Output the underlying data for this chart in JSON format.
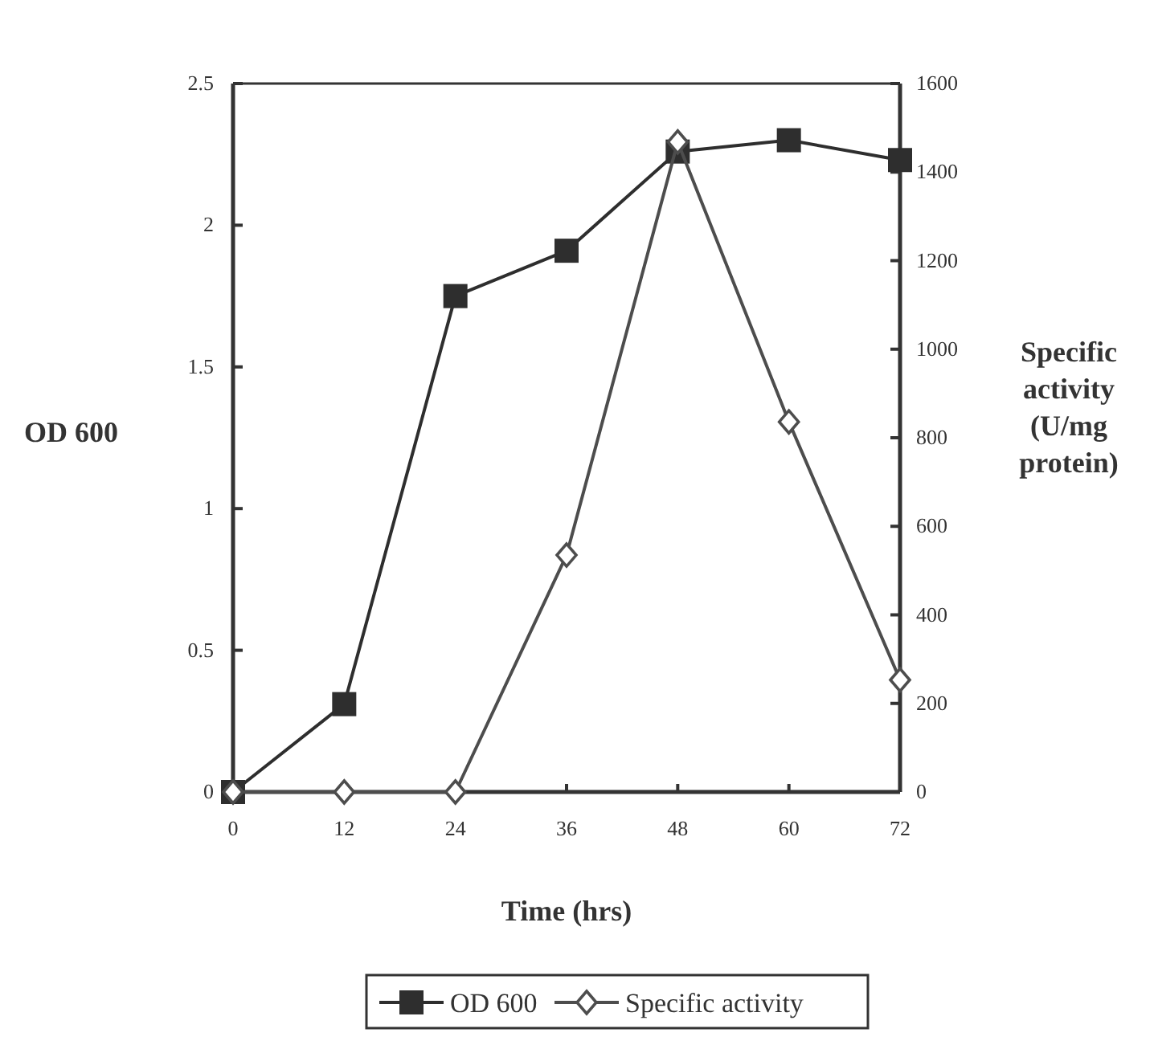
{
  "chart_data": {
    "type": "line",
    "xlabel": "Time (hrs)",
    "ylabel": "OD 600",
    "y2label": "Specific activity (U/mg protein)",
    "x": [
      0,
      12,
      24,
      36,
      48,
      60,
      72
    ],
    "xlim": [
      0,
      72
    ],
    "xticks": [
      0,
      12,
      24,
      36,
      48,
      60,
      72
    ],
    "ylim": [
      0,
      2.5
    ],
    "yticks": [
      0,
      0.5,
      1,
      1.5,
      2,
      2.5
    ],
    "y2lim": [
      0,
      1600
    ],
    "y2ticks": [
      0,
      200,
      400,
      600,
      800,
      1000,
      1200,
      1400,
      1600
    ],
    "series": [
      {
        "name": "OD 600",
        "color": "#2e2e2e",
        "marker": "square",
        "values": [
          0,
          0.31,
          1.75,
          1.91,
          2.26,
          2.3,
          2.23
        ]
      },
      {
        "name": "Specific activity",
        "color": "#4d4d4d",
        "marker": "diamond",
        "axis": "y2",
        "values": [
          0,
          0,
          0,
          535,
          1468,
          836,
          253
        ]
      }
    ],
    "grid": false,
    "legend": "bottom",
    "line_style": "solid"
  }
}
